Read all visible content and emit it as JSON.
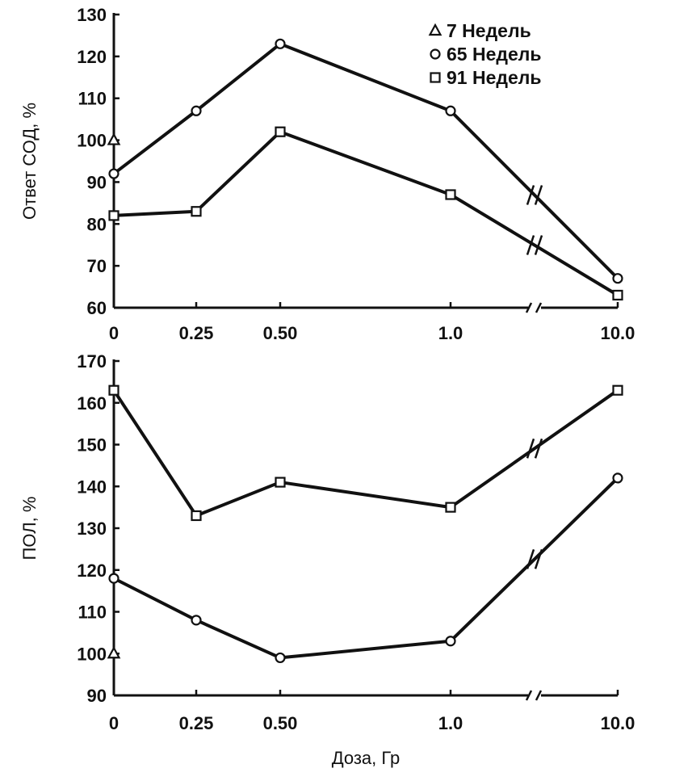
{
  "chart_data": [
    {
      "type": "line",
      "ylabel": "Ответ СОД, %",
      "xlabel": "",
      "ylim": [
        60,
        130
      ],
      "yticks": [
        60,
        70,
        80,
        90,
        100,
        110,
        120,
        130
      ],
      "categories": [
        "0",
        "0.25",
        "0.50",
        "1.0",
        "10.0"
      ],
      "axis_break_between": [
        "1.0",
        "10.0"
      ],
      "legend": {
        "position": "top-right",
        "entries": [
          {
            "marker": "triangle",
            "label": "7  Недель"
          },
          {
            "marker": "circle",
            "label": "65  Недель"
          },
          {
            "marker": "square",
            "label": "91  Недель"
          }
        ]
      },
      "series": [
        {
          "name": "7  Недель",
          "marker": "triangle",
          "values": [
            100,
            null,
            null,
            null,
            null
          ]
        },
        {
          "name": "65  Недель",
          "marker": "circle",
          "values": [
            92,
            107,
            123,
            107,
            67
          ]
        },
        {
          "name": "91  Недель",
          "marker": "square",
          "values": [
            82,
            83,
            102,
            87,
            63
          ]
        }
      ]
    },
    {
      "type": "line",
      "ylabel": "ПОЛ, %",
      "xlabel": "Доза, Гр",
      "ylim": [
        90,
        170
      ],
      "yticks": [
        90,
        100,
        110,
        120,
        130,
        140,
        150,
        160,
        170
      ],
      "categories": [
        "0",
        "0.25",
        "0.50",
        "1.0",
        "10.0"
      ],
      "axis_break_between": [
        "1.0",
        "10.0"
      ],
      "series": [
        {
          "name": "7  Недель",
          "marker": "triangle",
          "values": [
            100,
            null,
            null,
            null,
            null
          ]
        },
        {
          "name": "65  Недель",
          "marker": "circle",
          "values": [
            118,
            108,
            99,
            103,
            142
          ]
        },
        {
          "name": "91  Недель",
          "marker": "square",
          "values": [
            163,
            133,
            141,
            135,
            163
          ]
        }
      ]
    }
  ]
}
